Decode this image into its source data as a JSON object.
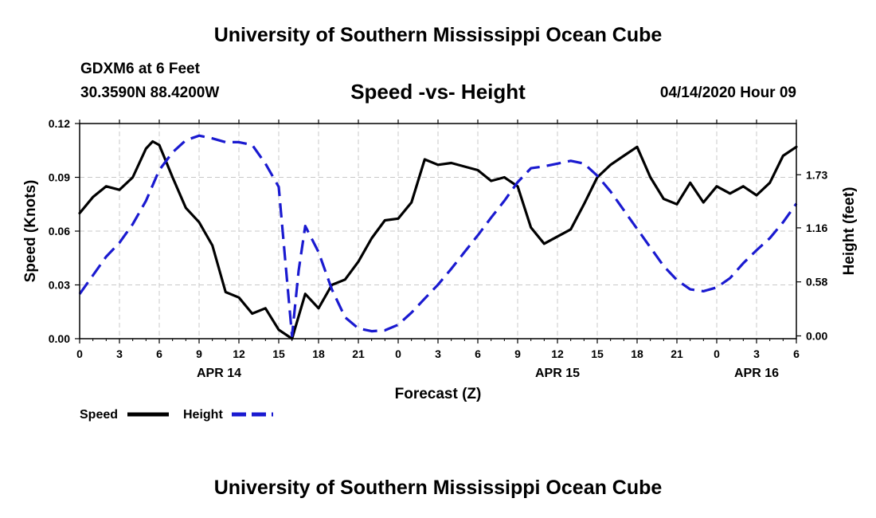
{
  "header": {
    "title_top": "University of Southern Mississippi Ocean Cube",
    "title_bottom": "University of Southern Mississippi Ocean Cube",
    "station": "GDXM6 at 6 Feet",
    "coords": "30.3590N 88.4200W",
    "datetime": "04/14/2020 Hour 09"
  },
  "colors": {
    "speed": "#000000",
    "height": "#1a1ad0",
    "grid": "#c8c8c8"
  },
  "chart_data": {
    "type": "line",
    "title": "Speed -vs- Height",
    "xlabel": "Forecast (Z)",
    "ylabel": "Speed (Knots)",
    "y2label": "Height (feet)",
    "xlim": [
      0,
      54
    ],
    "ylim": [
      0,
      0.12
    ],
    "y2lim": [
      -0.03,
      2.28
    ],
    "yticks": [
      "0.00",
      "0.03",
      "0.06",
      "0.09",
      "0.12"
    ],
    "y2ticks": [
      "0.00",
      "0.58",
      "1.16",
      "1.73"
    ],
    "xticks": [
      "0",
      "3",
      "6",
      "9",
      "12",
      "15",
      "18",
      "21",
      "0",
      "3",
      "6",
      "9",
      "12",
      "15",
      "18",
      "21",
      "0",
      "3",
      "6"
    ],
    "date_labels": [
      {
        "label": "APR 14",
        "x": 10.5
      },
      {
        "label": "APR 15",
        "x": 36
      },
      {
        "label": "APR 16",
        "x": 51
      }
    ],
    "legend": [
      {
        "name": "Speed",
        "style": "solid"
      },
      {
        "name": "Height",
        "style": "dashed"
      }
    ],
    "series": [
      {
        "name": "Speed",
        "axis": "left",
        "style": "solid",
        "x": [
          0,
          1,
          2,
          3,
          4,
          5,
          5.5,
          6,
          7,
          8,
          9,
          10,
          11,
          12,
          13,
          14,
          15,
          16,
          17,
          18,
          19,
          20,
          21,
          22,
          23,
          24,
          25,
          26,
          27,
          28,
          29,
          30,
          31,
          32,
          33,
          34,
          35,
          36,
          37,
          38,
          39,
          40,
          41,
          42,
          43,
          44,
          45,
          46,
          47,
          48,
          49,
          50,
          51,
          52,
          53,
          54
        ],
        "values": [
          0.07,
          0.079,
          0.085,
          0.083,
          0.09,
          0.106,
          0.11,
          0.108,
          0.09,
          0.073,
          0.065,
          0.052,
          0.026,
          0.023,
          0.014,
          0.017,
          0.005,
          0.0,
          0.025,
          0.017,
          0.03,
          0.033,
          0.043,
          0.056,
          0.066,
          0.067,
          0.076,
          0.1,
          0.097,
          0.098,
          0.096,
          0.094,
          0.088,
          0.09,
          0.085,
          0.062,
          0.053,
          0.057,
          0.061,
          0.075,
          0.09,
          0.097,
          0.102,
          0.107,
          0.09,
          0.078,
          0.075,
          0.087,
          0.076,
          0.085,
          0.081,
          0.085,
          0.08,
          0.087,
          0.102,
          0.107
        ]
      },
      {
        "name": "Height",
        "axis": "right",
        "style": "dashed",
        "x": [
          0,
          1,
          2,
          3,
          4,
          5,
          6,
          7,
          8,
          9,
          10,
          11,
          12,
          13,
          14,
          15,
          15.5,
          16,
          16.5,
          17,
          18,
          19,
          20,
          21,
          22,
          23,
          24,
          25,
          26,
          27,
          28,
          29,
          30,
          31,
          32,
          33,
          34,
          35,
          36,
          37,
          38,
          39,
          40,
          41,
          42,
          43,
          44,
          45,
          46,
          47,
          48,
          49,
          50,
          51,
          52,
          53,
          54
        ],
        "values": [
          0.45,
          0.65,
          0.85,
          1.0,
          1.2,
          1.45,
          1.78,
          1.97,
          2.1,
          2.15,
          2.12,
          2.08,
          2.08,
          2.05,
          1.85,
          1.6,
          0.8,
          0.0,
          0.7,
          1.18,
          0.9,
          0.5,
          0.2,
          0.08,
          0.05,
          0.06,
          0.12,
          0.25,
          0.4,
          0.55,
          0.72,
          0.9,
          1.08,
          1.27,
          1.45,
          1.65,
          1.8,
          1.82,
          1.85,
          1.88,
          1.85,
          1.72,
          1.55,
          1.35,
          1.15,
          0.95,
          0.75,
          0.6,
          0.5,
          0.48,
          0.52,
          0.62,
          0.78,
          0.92,
          1.05,
          1.22,
          1.42
        ]
      }
    ]
  }
}
